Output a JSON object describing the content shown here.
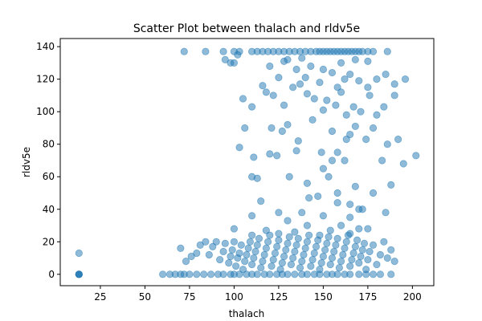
{
  "chart_data": {
    "type": "scatter",
    "title": "Scatter Plot between thalach and rldv5e",
    "xlabel": "thalach",
    "ylabel": "rldv5e",
    "xlim": [
      2.5,
      212
    ],
    "ylim": [
      -7,
      145
    ],
    "xticks": [
      25,
      50,
      75,
      100,
      125,
      150,
      175,
      200
    ],
    "yticks": [
      0,
      20,
      40,
      60,
      80,
      100,
      120,
      140
    ],
    "grid": false,
    "colors": {
      "point": "#1f77b4",
      "axis": "#000000"
    },
    "series": [
      {
        "marker_alpha": 0.5,
        "points": [
          [
            13,
            0
          ],
          [
            13,
            0
          ],
          [
            13,
            0
          ],
          [
            13,
            0
          ],
          [
            13,
            13
          ],
          [
            60,
            0
          ],
          [
            64,
            0
          ],
          [
            67,
            0
          ],
          [
            70,
            0
          ],
          [
            72,
            0
          ],
          [
            75,
            0
          ],
          [
            79,
            0
          ],
          [
            83,
            0
          ],
          [
            87,
            0
          ],
          [
            91,
            0
          ],
          [
            94,
            0
          ],
          [
            98,
            0
          ],
          [
            100,
            0
          ],
          [
            103,
            0
          ],
          [
            107,
            0
          ],
          [
            110,
            0
          ],
          [
            113,
            0
          ],
          [
            117,
            0
          ],
          [
            120,
            0
          ],
          [
            124,
            0
          ],
          [
            127,
            0
          ],
          [
            130,
            0
          ],
          [
            134,
            0
          ],
          [
            138,
            0
          ],
          [
            141,
            0
          ],
          [
            145,
            0
          ],
          [
            148,
            0
          ],
          [
            152,
            0
          ],
          [
            155,
            0
          ],
          [
            158,
            0
          ],
          [
            162,
            0
          ],
          [
            165,
            0
          ],
          [
            170,
            0
          ],
          [
            174,
            0
          ],
          [
            178,
            0
          ],
          [
            182,
            0
          ],
          [
            188,
            0
          ],
          [
            70,
            16
          ],
          [
            73,
            8
          ],
          [
            76,
            11
          ],
          [
            79,
            13
          ],
          [
            81,
            18
          ],
          [
            84,
            20
          ],
          [
            86,
            12
          ],
          [
            88,
            17
          ],
          [
            90,
            20
          ],
          [
            92,
            9
          ],
          [
            94,
            14
          ],
          [
            95,
            19
          ],
          [
            97,
            7
          ],
          [
            98,
            11
          ],
          [
            99,
            15
          ],
          [
            100,
            20
          ],
          [
            101,
            5
          ],
          [
            102,
            10
          ],
          [
            103,
            13
          ],
          [
            104,
            18
          ],
          [
            105,
            3
          ],
          [
            106,
            8
          ],
          [
            107,
            12
          ],
          [
            108,
            16
          ],
          [
            109,
            20
          ],
          [
            110,
            6
          ],
          [
            111,
            10
          ],
          [
            112,
            14
          ],
          [
            113,
            18
          ],
          [
            114,
            22
          ],
          [
            115,
            4
          ],
          [
            116,
            8
          ],
          [
            117,
            12
          ],
          [
            118,
            16
          ],
          [
            119,
            20
          ],
          [
            120,
            24
          ],
          [
            121,
            5
          ],
          [
            122,
            9
          ],
          [
            123,
            13
          ],
          [
            124,
            17
          ],
          [
            125,
            21
          ],
          [
            126,
            3
          ],
          [
            127,
            7
          ],
          [
            128,
            11
          ],
          [
            129,
            15
          ],
          [
            130,
            19
          ],
          [
            131,
            23
          ],
          [
            132,
            6
          ],
          [
            133,
            10
          ],
          [
            134,
            14
          ],
          [
            135,
            18
          ],
          [
            136,
            22
          ],
          [
            137,
            4
          ],
          [
            138,
            8
          ],
          [
            139,
            12
          ],
          [
            140,
            16
          ],
          [
            141,
            20
          ],
          [
            142,
            24
          ],
          [
            143,
            5
          ],
          [
            144,
            9
          ],
          [
            145,
            13
          ],
          [
            146,
            17
          ],
          [
            147,
            21
          ],
          [
            148,
            3
          ],
          [
            149,
            7
          ],
          [
            150,
            11
          ],
          [
            151,
            15
          ],
          [
            152,
            19
          ],
          [
            153,
            23
          ],
          [
            154,
            6
          ],
          [
            155,
            10
          ],
          [
            156,
            14
          ],
          [
            157,
            18
          ],
          [
            158,
            22
          ],
          [
            159,
            4
          ],
          [
            160,
            8
          ],
          [
            161,
            12
          ],
          [
            162,
            16
          ],
          [
            163,
            20
          ],
          [
            164,
            24
          ],
          [
            165,
            5
          ],
          [
            166,
            9
          ],
          [
            167,
            13
          ],
          [
            168,
            17
          ],
          [
            169,
            21
          ],
          [
            170,
            7
          ],
          [
            171,
            11
          ],
          [
            172,
            15
          ],
          [
            173,
            19
          ],
          [
            174,
            3
          ],
          [
            175,
            9
          ],
          [
            176,
            14
          ],
          [
            178,
            18
          ],
          [
            180,
            6
          ],
          [
            182,
            12
          ],
          [
            184,
            20
          ],
          [
            186,
            10
          ],
          [
            188,
            15
          ],
          [
            190,
            8
          ],
          [
            100,
            28
          ],
          [
            110,
            24
          ],
          [
            118,
            27
          ],
          [
            125,
            25
          ],
          [
            134,
            26
          ],
          [
            141,
            30
          ],
          [
            148,
            24
          ],
          [
            154,
            27
          ],
          [
            160,
            30
          ],
          [
            165,
            25
          ],
          [
            170,
            28
          ],
          [
            110,
            36
          ],
          [
            115,
            45
          ],
          [
            125,
            38
          ],
          [
            130,
            33
          ],
          [
            138,
            38
          ],
          [
            142,
            47
          ],
          [
            150,
            36
          ],
          [
            158,
            44
          ],
          [
            165,
            35
          ],
          [
            170,
            40
          ],
          [
            175,
            28
          ],
          [
            185,
            38
          ],
          [
            110,
            60
          ],
          [
            113,
            59
          ],
          [
            120,
            74
          ],
          [
            124,
            73
          ],
          [
            131,
            60
          ],
          [
            135,
            76
          ],
          [
            141,
            56
          ],
          [
            147,
            48
          ],
          [
            150,
            65
          ],
          [
            153,
            60
          ],
          [
            155,
            70
          ],
          [
            158,
            50
          ],
          [
            162,
            70
          ],
          [
            165,
            43
          ],
          [
            168,
            54
          ],
          [
            172,
            40
          ],
          [
            178,
            50
          ],
          [
            183,
            70
          ],
          [
            188,
            55
          ],
          [
            195,
            68
          ],
          [
            202,
            73
          ],
          [
            103,
            78
          ],
          [
            106,
            90
          ],
          [
            111,
            72
          ],
          [
            121,
            90
          ],
          [
            127,
            88
          ],
          [
            130,
            92
          ],
          [
            136,
            82
          ],
          [
            144,
            95
          ],
          [
            149,
            75
          ],
          [
            155,
            88
          ],
          [
            158,
            75
          ],
          [
            163,
            83
          ],
          [
            165,
            86
          ],
          [
            168,
            91
          ],
          [
            174,
            83
          ],
          [
            178,
            90
          ],
          [
            186,
            80
          ],
          [
            192,
            83
          ],
          [
            105,
            108
          ],
          [
            110,
            103
          ],
          [
            118,
            112
          ],
          [
            122,
            110
          ],
          [
            128,
            104
          ],
          [
            133,
            115
          ],
          [
            137,
            117
          ],
          [
            141,
            111
          ],
          [
            145,
            108
          ],
          [
            150,
            101
          ],
          [
            152,
            107
          ],
          [
            157,
            104
          ],
          [
            160,
            112
          ],
          [
            163,
            98
          ],
          [
            167,
            103
          ],
          [
            171,
            100
          ],
          [
            176,
            110
          ],
          [
            180,
            98
          ],
          [
            184,
            103
          ],
          [
            190,
            110
          ],
          [
            98,
            130
          ],
          [
            102,
            135
          ],
          [
            116,
            116
          ],
          [
            120,
            128
          ],
          [
            125,
            121
          ],
          [
            128,
            131
          ],
          [
            135,
            126
          ],
          [
            140,
            121
          ],
          [
            143,
            128
          ],
          [
            148,
            118
          ],
          [
            150,
            126
          ],
          [
            155,
            124
          ],
          [
            158,
            115
          ],
          [
            162,
            120
          ],
          [
            165,
            123
          ],
          [
            170,
            119
          ],
          [
            175,
            115
          ],
          [
            180,
            120
          ],
          [
            185,
            123
          ],
          [
            190,
            117
          ],
          [
            196,
            120
          ],
          [
            72,
            137
          ],
          [
            84,
            137
          ],
          [
            94,
            137
          ],
          [
            100,
            137
          ],
          [
            103,
            137
          ],
          [
            110,
            137
          ],
          [
            113,
            137
          ],
          [
            116,
            137
          ],
          [
            119,
            137
          ],
          [
            122,
            137
          ],
          [
            125,
            137
          ],
          [
            128,
            137
          ],
          [
            131,
            137
          ],
          [
            134,
            137
          ],
          [
            137,
            137
          ],
          [
            140,
            137
          ],
          [
            143,
            137
          ],
          [
            146,
            137
          ],
          [
            148,
            137
          ],
          [
            150,
            137
          ],
          [
            152,
            137
          ],
          [
            154,
            137
          ],
          [
            156,
            137
          ],
          [
            158,
            137
          ],
          [
            160,
            137
          ],
          [
            162,
            137
          ],
          [
            164,
            137
          ],
          [
            166,
            137
          ],
          [
            168,
            137
          ],
          [
            170,
            137
          ],
          [
            172,
            137
          ],
          [
            175,
            137
          ],
          [
            178,
            137
          ],
          [
            186,
            137
          ],
          [
            95,
            132
          ],
          [
            100,
            130
          ],
          [
            130,
            132
          ],
          [
            138,
            133
          ],
          [
            160,
            130
          ],
          [
            168,
            132
          ],
          [
            175,
            131
          ]
        ]
      }
    ]
  }
}
